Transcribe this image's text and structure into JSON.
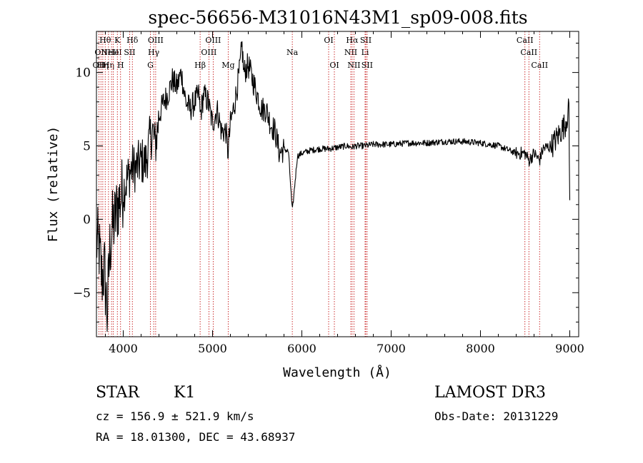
{
  "chart_data": {
    "type": "line",
    "title": "spec-56656-M31016N43M1_sp09-008.fits",
    "xlabel": "Wavelength (Å)",
    "ylabel": "Flux (relative)",
    "xlim": [
      3700,
      9100
    ],
    "ylim": [
      -8.0,
      12.8
    ],
    "xticks": [
      4000,
      5000,
      6000,
      7000,
      8000,
      9000
    ],
    "xtick_labels": [
      "4000",
      "5000",
      "6000",
      "7000",
      "8000",
      "9000"
    ],
    "yticks": [
      -5,
      0,
      5,
      10
    ],
    "ytick_labels": [
      "−5",
      "0",
      "5",
      "10"
    ],
    "grid": false,
    "line_color": "#000000",
    "marker_color": "#c00000",
    "spectrum_anchors": {
      "x": [
        3700,
        3730,
        3760,
        3790,
        3820,
        3850,
        3880,
        3910,
        3940,
        3970,
        4000,
        4030,
        4060,
        4100,
        4150,
        4200,
        4250,
        4300,
        4330,
        4360,
        4400,
        4450,
        4500,
        4550,
        4600,
        4650,
        4700,
        4750,
        4800,
        4850,
        4861,
        4900,
        4950,
        5000,
        5050,
        5100,
        5150,
        5172,
        5200,
        5250,
        5300,
        5330,
        5350,
        5400,
        5450,
        5500,
        5550,
        5600,
        5650,
        5700,
        5750,
        5800,
        5850,
        5893,
        5950,
        6000,
        6100,
        6200,
        6300,
        6400,
        6500,
        6563,
        6600,
        6700,
        6800,
        7000,
        7200,
        7400,
        7600,
        7800,
        8000,
        8200,
        8400,
        8500,
        8542,
        8600,
        8662,
        8700,
        8800,
        8850,
        8900,
        8950,
        8990,
        9000
      ],
      "y": [
        -1.5,
        -2.0,
        -4.0,
        -3.5,
        -6.5,
        -2.0,
        -0.5,
        0.0,
        1.0,
        1.5,
        2.0,
        2.5,
        3.0,
        3.5,
        3.5,
        4.0,
        3.8,
        5.5,
        6.0,
        5.0,
        7.0,
        8.0,
        8.5,
        9.5,
        9.0,
        10.0,
        8.0,
        7.5,
        8.0,
        8.5,
        7.0,
        8.5,
        8.0,
        6.5,
        7.5,
        6.0,
        6.0,
        4.5,
        6.5,
        8.0,
        10.0,
        11.8,
        10.0,
        10.5,
        9.5,
        8.5,
        7.5,
        7.5,
        6.5,
        6.0,
        4.5,
        4.8,
        4.6,
        0.5,
        4.3,
        4.5,
        4.7,
        4.8,
        4.8,
        4.9,
        5.0,
        4.9,
        5.0,
        5.0,
        5.1,
        5.1,
        5.2,
        5.2,
        5.3,
        5.3,
        5.2,
        5.0,
        4.5,
        4.5,
        4.0,
        4.5,
        4.0,
        4.8,
        5.0,
        5.5,
        6.0,
        6.5,
        7.5,
        1.0
      ]
    },
    "line_markers": [
      {
        "x": 3727,
        "label": "OII",
        "row": 2
      },
      {
        "x": 3750,
        "label": "OII",
        "row": 1
      },
      {
        "x": 3771,
        "label": "Hη",
        "row": 2
      },
      {
        "x": 3798,
        "label": "Hθ",
        "row": 0
      },
      {
        "x": 3835,
        "label": "Hη",
        "row": 2
      },
      {
        "x": 3869,
        "label": "NeIII",
        "row": 1
      },
      {
        "x": 3889,
        "label": "He",
        "row": 1
      },
      {
        "x": 3934,
        "label": "K",
        "row": 0
      },
      {
        "x": 3970,
        "label": "H",
        "row": 2
      },
      {
        "x": 4072,
        "label": "SII",
        "row": 1
      },
      {
        "x": 4102,
        "label": "Hδ",
        "row": 0
      },
      {
        "x": 4304,
        "label": "G",
        "row": 2
      },
      {
        "x": 4341,
        "label": "Hγ",
        "row": 1
      },
      {
        "x": 4363,
        "label": "OIII",
        "row": 0
      },
      {
        "x": 4861,
        "label": "Hβ",
        "row": 2
      },
      {
        "x": 4959,
        "label": "OIII",
        "row": 1
      },
      {
        "x": 5007,
        "label": "OIII",
        "row": 0
      },
      {
        "x": 5175,
        "label": "Mg",
        "row": 2
      },
      {
        "x": 5893,
        "label": "Na",
        "row": 1
      },
      {
        "x": 6300,
        "label": "OI",
        "row": 0
      },
      {
        "x": 6364,
        "label": "OI",
        "row": 2
      },
      {
        "x": 6548,
        "label": "NII",
        "row": 1
      },
      {
        "x": 6563,
        "label": "Hα",
        "row": 0
      },
      {
        "x": 6583,
        "label": "NII",
        "row": 2
      },
      {
        "x": 6708,
        "label": "Li",
        "row": 1
      },
      {
        "x": 6716,
        "label": "SII",
        "row": 0
      },
      {
        "x": 6731,
        "label": "SII",
        "row": 2
      },
      {
        "x": 8498,
        "label": "CaII",
        "row": 0
      },
      {
        "x": 8542,
        "label": "CaII",
        "row": 1
      },
      {
        "x": 8662,
        "label": "CaII",
        "row": 2
      }
    ]
  },
  "info": {
    "object_class": "STAR",
    "subclass": "K1",
    "survey": "LAMOST DR3",
    "redshift": "cz =  156.9 ± 521.9 km/s",
    "obs_date": "Obs-Date: 20131229",
    "coords": "RA =  18.01300, DEC =  43.68937"
  }
}
